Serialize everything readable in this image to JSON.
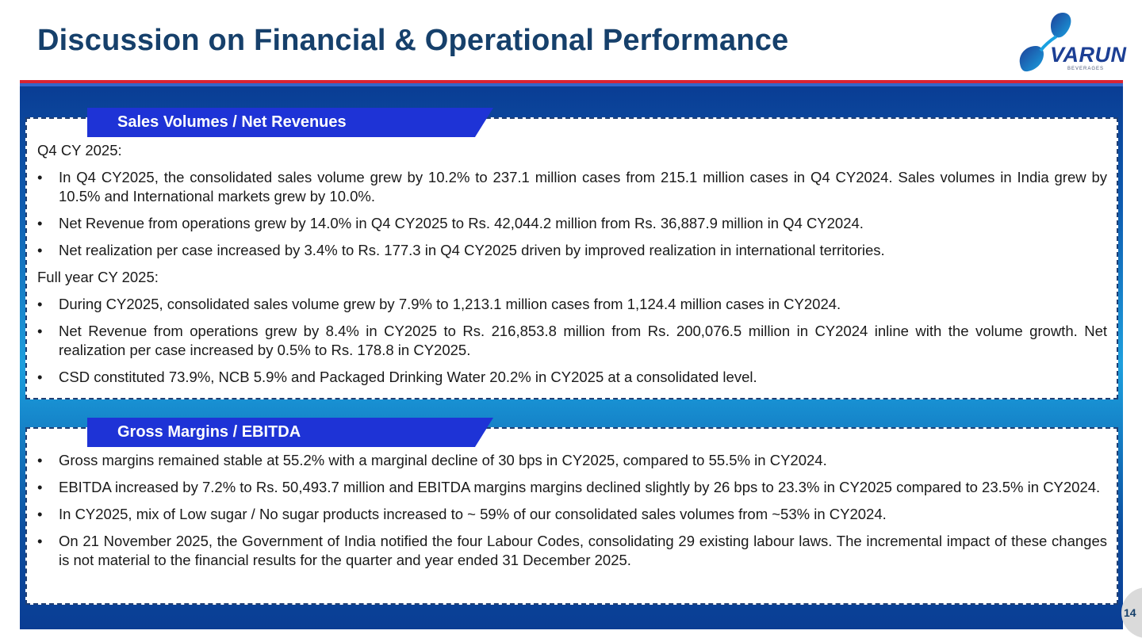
{
  "header": {
    "title": "Discussion on Financial & Operational Performance"
  },
  "logo": {
    "word": "VARUN",
    "sub": "BEVERAGES",
    "colors": {
      "primary": "#1c3f94",
      "accent": "#1aa1e0"
    }
  },
  "colors": {
    "title": "#16406b",
    "tab": "#1e33d6",
    "rule_red": "#d92433",
    "rule_blue": "#3566c8"
  },
  "sections": [
    {
      "tab_label": "Sales Volumes / Net Revenues",
      "subheading_q4": "Q4 CY 2025:",
      "q4_bullets": [
        "In Q4 CY2025, the consolidated sales volume grew by 10.2% to 237.1 million cases from 215.1 million cases in Q4 CY2024. Sales volumes in India grew by 10.5% and International markets grew by 10.0%.",
        "Net Revenue from operations grew by 14.0% in Q4 CY2025 to Rs. 42,044.2 million from Rs. 36,887.9 million in Q4 CY2024.",
        "Net realization per case increased by 3.4% to Rs. 177.3 in Q4 CY2025 driven by improved realization in international territories."
      ],
      "subheading_fy": "Full year CY 2025:",
      "fy_bullets": [
        "During CY2025, consolidated sales volume grew by 7.9% to 1,213.1 million cases from 1,124.4 million cases in CY2024.",
        "Net Revenue from operations grew by 8.4% in CY2025 to Rs. 216,853.8 million from Rs. 200,076.5 million in CY2024 inline with the volume growth. Net realization per case increased by 0.5% to Rs. 178.8 in CY2025.",
        "CSD constituted 73.9%, NCB 5.9% and Packaged Drinking Water 20.2% in CY2025 at a consolidated level."
      ]
    },
    {
      "tab_label": "Gross Margins / EBITDA",
      "bullets": [
        "Gross margins remained stable at 55.2% with a marginal decline of 30 bps in CY2025, compared to 55.5% in CY2024.",
        "EBITDA increased by 7.2% to Rs. 50,493.7 million and EBITDA margins margins declined slightly by 26 bps to 23.3% in CY2025 compared to 23.5% in CY2024.",
        "In CY2025, mix of Low sugar / No sugar products increased to ~ 59% of our consolidated sales volumes from ~53% in CY2024.",
        "On 21 November 2025, the Government of India notified the four Labour Codes, consolidating 29 existing labour laws. The incremental impact of these changes is not material to the financial results for the quarter and year ended 31 December 2025."
      ]
    }
  ],
  "bullet_glyph": "•",
  "page_number": "14"
}
